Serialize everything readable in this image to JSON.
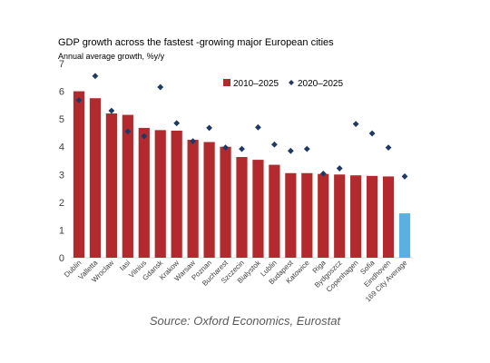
{
  "colors": {
    "bar": "#b22a2e",
    "highlight_bar": "#5ab0e0",
    "marker": "#1f3864",
    "axis_text": "#404040"
  },
  "chart_data": {
    "type": "bar",
    "title": "GDP growth across the fastest -growing major European cities",
    "subtitle": "Annual average growth, %y/y",
    "xlabel": "",
    "ylabel": "",
    "ylim": [
      0,
      7
    ],
    "yticks": [
      0,
      1,
      2,
      3,
      4,
      5,
      6,
      7
    ],
    "grid": false,
    "legend_position": "top-right",
    "categories": [
      "Dublin",
      "Valletta",
      "Wroclaw",
      "Iasi",
      "Vilnius",
      "Gdansk",
      "Krakow",
      "Warsaw",
      "Poznan",
      "Bucharest",
      "Szczecin",
      "Bialystok",
      "Lublin",
      "Budapest",
      "Katowice",
      "Riga",
      "Bydgoszcz",
      "Copenhagen",
      "Sofia",
      "Eindhoven",
      "169 City Average"
    ],
    "series": [
      {
        "name": "2010–2025",
        "kind": "bar",
        "values": [
          6.0,
          5.75,
          5.2,
          5.15,
          4.68,
          4.6,
          4.58,
          4.25,
          4.17,
          4.0,
          3.63,
          3.53,
          3.35,
          3.05,
          3.05,
          3.02,
          3.0,
          2.97,
          2.95,
          2.93,
          1.6
        ]
      },
      {
        "name": "2020–2025",
        "kind": "marker",
        "values": [
          5.68,
          6.55,
          5.3,
          4.55,
          4.38,
          6.15,
          4.85,
          4.2,
          4.68,
          3.97,
          3.92,
          4.7,
          4.08,
          3.85,
          3.92,
          3.03,
          3.22,
          4.82,
          4.48,
          3.97,
          2.93
        ]
      }
    ],
    "highlight_category": "169 City Average"
  },
  "source_text": "Source: Oxford Economics, Eurostat"
}
